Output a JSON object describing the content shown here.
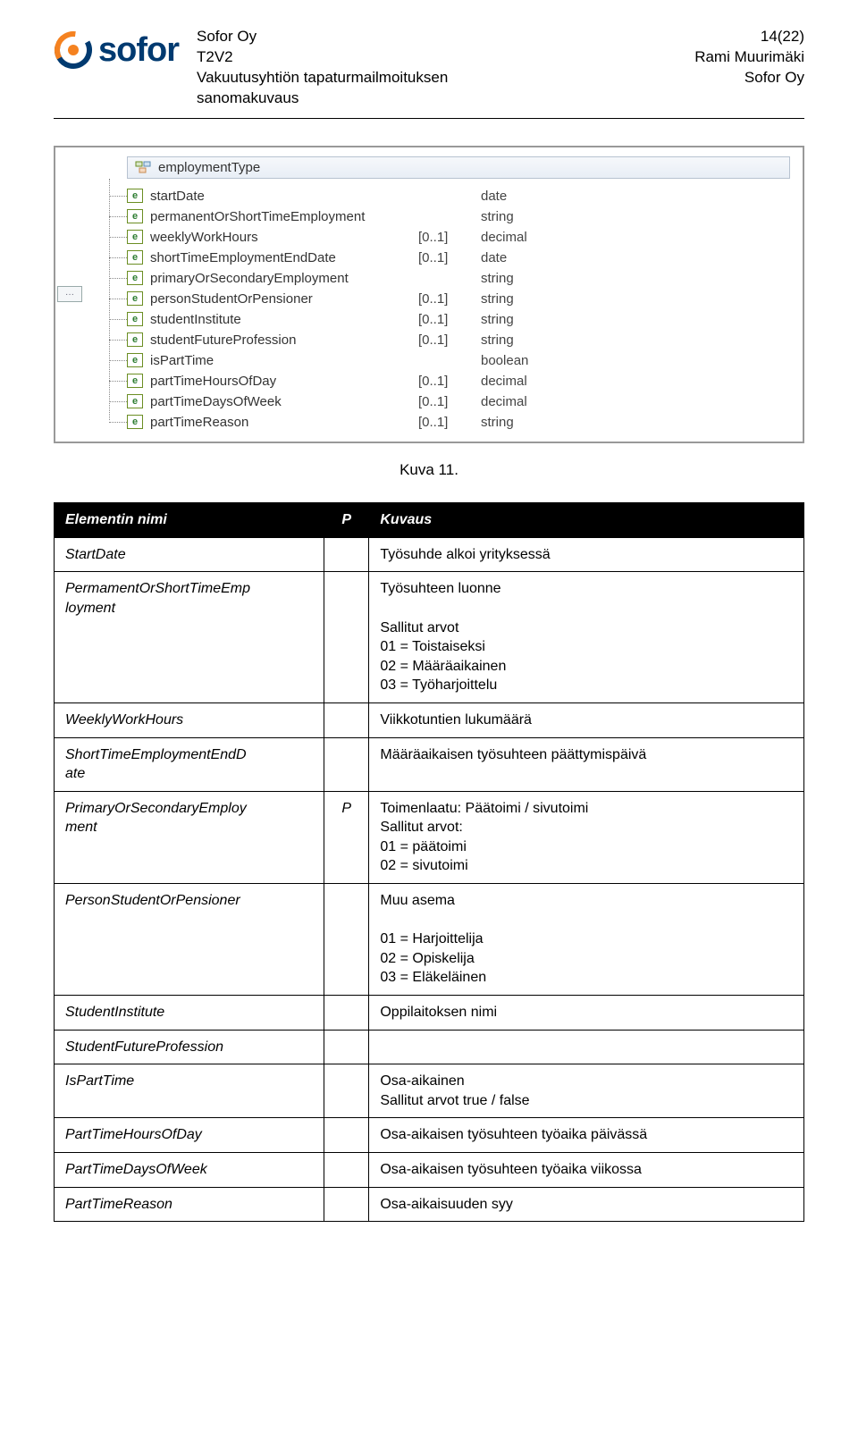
{
  "header": {
    "company": "Sofor Oy",
    "doc_code": "T2V2",
    "doc_title_line1": "Vakuutusyhtiön tapaturmailmoituksen",
    "doc_title_line2": "sanomakuvaus",
    "page_indicator": "14(22)",
    "author": "Rami Muurimäki",
    "org": "Sofor Oy",
    "logo_text": "sofor"
  },
  "schema": {
    "type_name": "employmentType",
    "elements": [
      {
        "name": "startDate",
        "card": "",
        "type": "date"
      },
      {
        "name": "permanentOrShortTimeEmployment",
        "card": "",
        "type": "string"
      },
      {
        "name": "weeklyWorkHours",
        "card": "[0..1]",
        "type": "decimal"
      },
      {
        "name": "shortTimeEmploymentEndDate",
        "card": "[0..1]",
        "type": "date"
      },
      {
        "name": "primaryOrSecondaryEmployment",
        "card": "",
        "type": "string"
      },
      {
        "name": "personStudentOrPensioner",
        "card": "[0..1]",
        "type": "string"
      },
      {
        "name": "studentInstitute",
        "card": "[0..1]",
        "type": "string"
      },
      {
        "name": "studentFutureProfession",
        "card": "[0..1]",
        "type": "string"
      },
      {
        "name": "isPartTime",
        "card": "",
        "type": "boolean"
      },
      {
        "name": "partTimeHoursOfDay",
        "card": "[0..1]",
        "type": "decimal"
      },
      {
        "name": "partTimeDaysOfWeek",
        "card": "[0..1]",
        "type": "decimal"
      },
      {
        "name": "partTimeReason",
        "card": "[0..1]",
        "type": "string"
      }
    ]
  },
  "figure_caption": "Kuva 11.",
  "table": {
    "headers": {
      "name": "Elementin nimi",
      "p": "P",
      "desc": "Kuvaus"
    },
    "rows": [
      {
        "name": "StartDate",
        "p": "",
        "desc": "Työsuhde alkoi yrityksessä"
      },
      {
        "name": "PermamentOrShortTimeEmp\nloyment",
        "p": "",
        "desc": "Työsuhteen luonne\n\nSallitut arvot\n01 = Toistaiseksi\n02 = Määräaikainen\n03 = Työharjoittelu"
      },
      {
        "name": "WeeklyWorkHours",
        "p": "",
        "desc": "Viikkotuntien lukumäärä"
      },
      {
        "name": "ShortTimeEmploymentEndD\nate",
        "p": "",
        "desc": "Määräaikaisen työsuhteen päättymispäivä"
      },
      {
        "name": "PrimaryOrSecondaryEmploy\nment",
        "p": "P",
        "desc": "Toimenlaatu: Päätoimi / sivutoimi\nSallitut arvot:\n01 = päätoimi\n02 = sivutoimi"
      },
      {
        "name": "PersonStudentOrPensioner",
        "p": "",
        "desc": "Muu asema\n\n01 = Harjoittelija\n02 = Opiskelija\n03 = Eläkeläinen"
      },
      {
        "name": "StudentInstitute",
        "p": "",
        "desc": "Oppilaitoksen nimi"
      },
      {
        "name": "StudentFutureProfession",
        "p": "",
        "desc": ""
      },
      {
        "name": "IsPartTime",
        "p": "",
        "desc": "Osa-aikainen\nSallitut arvot true / false"
      },
      {
        "name": "PartTimeHoursOfDay",
        "p": "",
        "desc": "Osa-aikaisen työsuhteen työaika päivässä"
      },
      {
        "name": "PartTimeDaysOfWeek",
        "p": "",
        "desc": "Osa-aikaisen työsuhteen työaika viikossa"
      },
      {
        "name": "PartTimeReason",
        "p": "",
        "desc": "Osa-aikaisuuden syy"
      }
    ]
  },
  "colors": {
    "brand_navy": "#003a70",
    "brand_orange": "#f58220",
    "header_bg": "#000000",
    "header_fg": "#ffffff",
    "border": "#000000",
    "schema_border": "#999999",
    "tree_line": "#888888",
    "e_badge_border": "#6b8e23",
    "e_badge_text": "#2e7d32",
    "type_row_top": "#f6f8fb",
    "type_row_bottom": "#e8eef6"
  }
}
